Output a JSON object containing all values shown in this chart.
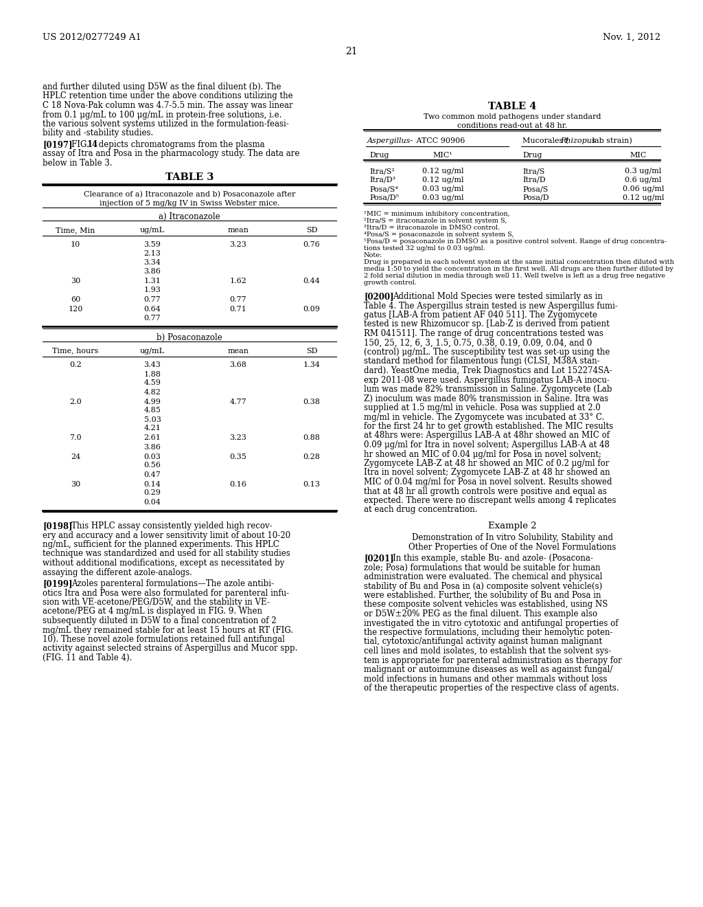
{
  "page_header_left": "US 2012/0277249 A1",
  "page_header_right": "Nov. 1, 2012",
  "page_number": "21",
  "left_intro": [
    "and further diluted using D5W as the final diluent (b). The",
    "HPLC retention time under the above conditions utilizing the",
    "C 18 Nova-Pak column was 4.7-5.5 min. The assay was linear",
    "from 0.1 μg/mL to 100 μg/mL in protein-free solutions, i.e.",
    "the various solvent systems utilized in the formulation-feasi-",
    "bility and -stability studies."
  ],
  "p0197_lines": [
    "assay of Itra and Posa in the pharmacology study. The data are",
    "below in Table 3."
  ],
  "table3_title": "TABLE 3",
  "table3_subtitle1": "Clearance of a) Itraconazole and b) Posaconazole after",
  "table3_subtitle2": "injection of 5 mg/kg IV in Swiss Webster mice.",
  "table3_section_a": "a) Itraconazole",
  "table3_headers_a": [
    "Time, Min",
    "ug/mL",
    "mean",
    "SD"
  ],
  "table3_data_a": [
    [
      "10",
      [
        "3.59",
        "2.13",
        "3.34",
        "3.86"
      ],
      "3.23",
      "0.76"
    ],
    [
      "30",
      [
        "1.31",
        "1.93"
      ],
      "1.62",
      "0.44"
    ],
    [
      "60",
      [
        "0.77"
      ],
      "0.77",
      ""
    ],
    [
      "120",
      [
        "0.64",
        "0.77"
      ],
      "0.71",
      "0.09"
    ]
  ],
  "table3_section_b": "b) Posaconazole",
  "table3_headers_b": [
    "Time, hours",
    "ug/mL",
    "mean",
    "SD"
  ],
  "table3_data_b": [
    [
      "0.2",
      [
        "3.43",
        "1.88",
        "4.59",
        "4.82"
      ],
      "3.68",
      "1.34"
    ],
    [
      "2.0",
      [
        "4.99",
        "4.85",
        "5.03",
        "4.21"
      ],
      "4.77",
      "0.38"
    ],
    [
      "7.0",
      [
        "2.61",
        "3.86"
      ],
      "3.23",
      "0.88"
    ],
    [
      "24",
      [
        "0.03",
        "0.56",
        "0.47"
      ],
      "0.35",
      "0.28"
    ],
    [
      "30",
      [
        "0.14",
        "0.29",
        "0.04"
      ],
      "0.16",
      "0.13"
    ]
  ],
  "p0198_lines": [
    "ery and accuracy and a lower sensitivity limit of about 10-20",
    "ng/mL, sufficient for the planned experiments. This HPLC",
    "technique was standardized and used for all stability studies",
    "without additional modifications, except as necessitated by",
    "assaying the different azole-analogs."
  ],
  "p0199_lines": [
    "otics Itra and Posa were also formulated for parenteral infu-",
    "sion with VE-acetone/PEG/D5W, and the stability in VE-",
    "acetone/PEG at 4 mg/mL is displayed in FIG. 9. When",
    "subsequently diluted in D5W to a final concentration of 2",
    "mg/mL they remained stable for at least 15 hours at RT (FIG.",
    "10). These novel azole formulations retained full antifungal",
    "activity against selected strains of Aspergillus and Mucor spp.",
    "(FIG. 11 and Table 4)."
  ],
  "table4_title": "TABLE 4",
  "table4_subtitle1": "Two common mold pathogens under standard",
  "table4_subtitle2": "conditions read-out at 48 hr.",
  "table4_col1_header": "Aspergillus- ATCC 90906",
  "table4_col2_header": "Mucorales (Rhizopus lab strain)",
  "table4_sub_headers": [
    "Drug",
    "MIC¹",
    "Drug",
    "MIC"
  ],
  "table4_data": [
    [
      "Itra/S²",
      "0.12 ug/ml",
      "Itra/S",
      "0.3 ug/ml"
    ],
    [
      "Itra/D³",
      "0.12 ug/ml",
      "Itra/D",
      "0.6 ug/ml"
    ],
    [
      "Posa/S⁴",
      "0.03 ug/ml",
      "Posa/S",
      "0.06 ug/ml"
    ],
    [
      "Posa/D⁵",
      "0.03 ug/ml",
      "Posa/D",
      "0.12 ug/ml"
    ]
  ],
  "table4_footnotes": [
    "¹MIC = minimum inhibitory concentration,",
    "²Itra/S = itraconazole in solvent system S,",
    "³Itra/D = itraconazole in DMSO control.",
    "⁴Posa/S = posaconazole in solvent system S,",
    "⁵Posa/D = posaconazole in DMSO as a positive control solvent. Range of drug concentra-",
    "tions tested 32 ug/ml to 0.03 ug/ml.",
    "Note:",
    "Drug is prepared in each solvent system at the same initial concentration then diluted with",
    "media 1:50 to yield the concentration in the first well. All drugs are then further diluted by",
    "2 fold serial dilution in media through well 11. Well twelve is left as a drug free negative",
    "growth control."
  ],
  "p0200_lines": [
    "Table 4. The Aspergillus strain tested is new Aspergillus fumi-",
    "gatus [LAB-A from patient AF 040 511]. The Zygomycete",
    "tested is new Rhizomucor sp. [Lab-Z is derived from patient",
    "RM 041511]. The range of drug concentrations tested was",
    "150, 25, 12, 6, 3, 1.5, 0.75, 0.38, 0.19, 0.09, 0.04, and 0",
    "(control) μg/mL. The susceptibility test was set-up using the",
    "standard method for filamentous fungi (CLSI, M38A stan-",
    "dard). YeastOne media, Trek Diagnostics and Lot 152274SA-",
    "exp 2011-08 were used. Aspergillus fumigatus LAB-A inocu-",
    "lum was made 82% transmission in Saline. Zygomycete (Lab",
    "Z) inoculum was made 80% transmission in Saline. Itra was",
    "supplied at 1.5 mg/ml in vehicle. Posa was supplied at 2.0",
    "mg/ml in vehicle. The Zygomycete was incubated at 33° C.",
    "for the first 24 hr to get growth established. The MIC results",
    "at 48hrs were: Aspergillus LAB-A at 48hr showed an MIC of",
    "0.09 μg/ml for Itra in novel solvent; Aspergillus LAB-A at 48",
    "hr showed an MIC of 0.04 μg/ml for Posa in novel solvent;",
    "Zygomycete LAB-Z at 48 hr showed an MIC of 0.2 μg/ml for",
    "Itra in novel solvent; Zygomycete LAB-Z at 48 hr showed an",
    "MIC of 0.04 mg/ml for Posa in novel solvent. Results showed",
    "that at 48 hr all growth controls were positive and equal as",
    "expected. There were no discrepant wells among 4 replicates",
    "at each drug concentration."
  ],
  "example2_title": "Example 2",
  "example2_subtitle1": "Demonstration of In vitro Solubility, Stability and",
  "example2_subtitle2": "Other Properties of One of the Novel Formulations",
  "p0201_lines": [
    "zole; Posa) formulations that would be suitable for human",
    "administration were evaluated. The chemical and physical",
    "stability of Bu and Posa in (a) composite solvent vehicle(s)",
    "were established. Further, the solubility of Bu and Posa in",
    "these composite solvent vehicles was established, using NS",
    "or D5W±20% PEG as the final diluent. This example also",
    "investigated the in vitro cytotoxic and antifungal properties of",
    "the respective formulations, including their hemolytic poten-",
    "tial, cytotoxic/antifungal activity against human malignant",
    "cell lines and mold isolates, to establish that the solvent sys-",
    "tem is appropriate for parenteral administration as therapy for",
    "malignant or autoimmune diseases as well as against fungal/",
    "mold infections in humans and other mammals without loss",
    "of the therapeutic properties of the respective class of agents."
  ]
}
